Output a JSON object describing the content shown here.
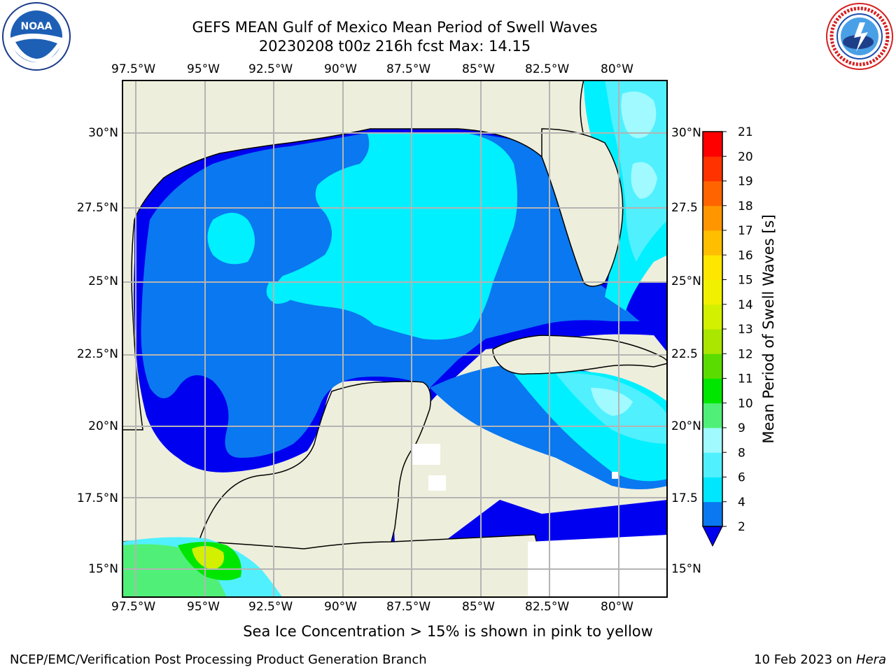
{
  "title_line1": "GEFS MEAN Gulf of Mexico Mean Period of Swell Waves",
  "title_line2": "20230208 t00z 216h fcst   Max: 14.15",
  "lon_ticks": [
    "97.5°W",
    "95°W",
    "92.5°W",
    "90°W",
    "87.5°W",
    "85°W",
    "82.5°W",
    "80°W"
  ],
  "lat_ticks_left": [
    "30°N",
    "27.5°N",
    "25°N",
    "22.5°N",
    "20°N",
    "17.5°N",
    "15°N"
  ],
  "lat_ticks_right": [
    "30°N",
    "27.5",
    "25°N",
    "22.5",
    "20°N",
    "17.5",
    "15°N"
  ],
  "colorbar": {
    "label": "Mean Period of Swell Waves [s]",
    "ticks": [
      "2",
      "4",
      "6",
      "8",
      "9",
      "10",
      "11",
      "12",
      "13",
      "14",
      "15",
      "16",
      "17",
      "18",
      "19",
      "20",
      "21"
    ],
    "colors": [
      "#0a78f0",
      "#00e6ff",
      "#50f0ff",
      "#a0faff",
      "#50f078",
      "#00e600",
      "#5adc00",
      "#aae600",
      "#d2f000",
      "#f0f000",
      "#ffe600",
      "#ffbe00",
      "#ff9600",
      "#ff6400",
      "#ff3200",
      "#ff0000"
    ],
    "extend_color": "#0000f0"
  },
  "note": "Sea Ice Concentration > 15% is shown in pink to yellow",
  "footer_left": "NCEP/EMC/Verification Post Processing Product Generation Branch",
  "footer_right_date": "10 Feb 2023 on ",
  "footer_right_host": "Hera",
  "logos": {
    "left": "noaa-logo",
    "right": "nws-logo"
  },
  "land_color": "#eeeedc",
  "period_colors": {
    "lt2": "#0000f0",
    "p2_4": "#0a78f0",
    "p4_6": "#00f0ff",
    "p6_8": "#50f0ff",
    "p8_9": "#a0faff",
    "p9_10": "#50f078",
    "p10_11": "#00e600",
    "p12_13": "#d2f000"
  }
}
